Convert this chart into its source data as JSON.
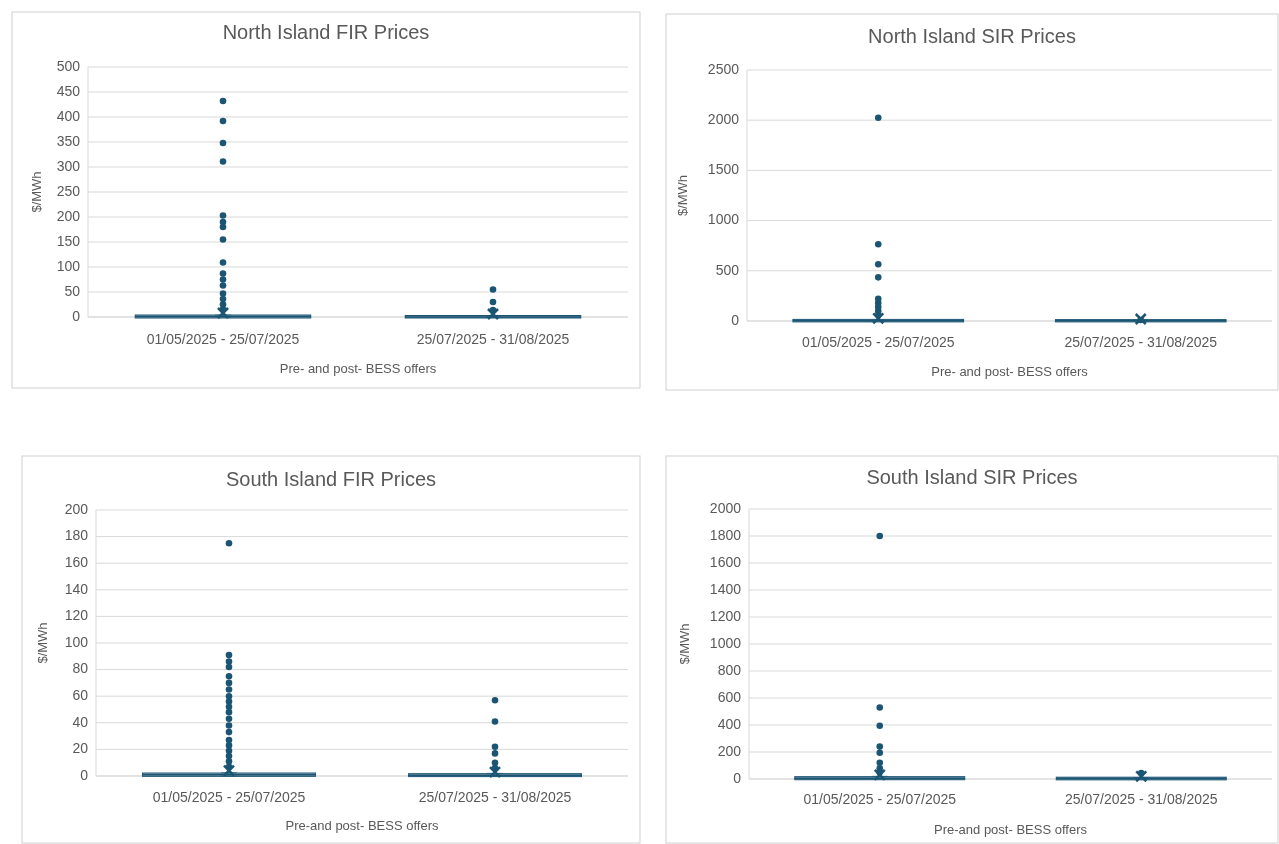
{
  "chart_data": [
    {
      "type": "box",
      "title": "North Island FIR Prices",
      "xlabel": "Pre- and post- BESS offers",
      "ylabel": "$/MWh",
      "categories": [
        "01/05/2025 - 25/07/2025",
        "25/07/2025 - 31/08/2025"
      ],
      "color": "#1b5574",
      "ylim": [
        0,
        500
      ],
      "yticks": [
        0,
        50,
        100,
        150,
        200,
        250,
        300,
        350,
        400,
        450,
        500
      ],
      "grid": "y",
      "marker": "circle",
      "boxes": [
        {
          "low": 0,
          "q1": 0,
          "median": 1,
          "q3": 2,
          "high": 4,
          "mean": 8,
          "outliers": [
            432,
            392,
            348,
            311,
            203,
            190,
            180,
            155,
            109,
            87,
            75,
            63,
            47,
            36,
            25,
            15
          ]
        },
        {
          "low": 0,
          "q1": 0,
          "median": 0,
          "q3": 1,
          "high": 2,
          "mean": 6,
          "outliers": [
            55,
            30,
            14
          ]
        }
      ]
    },
    {
      "type": "box",
      "title": "North Island SIR Prices",
      "xlabel": "Pre- and post- BESS offers",
      "ylabel": "$/MWh",
      "categories": [
        "01/05/2025 - 25/07/2025",
        "25/07/2025 - 31/08/2025"
      ],
      "color": "#1b5574",
      "ylim": [
        0,
        2500
      ],
      "yticks": [
        0,
        500,
        1000,
        1500,
        2000,
        2500
      ],
      "grid": "y",
      "marker": "circle",
      "boxes": [
        {
          "low": 0,
          "q1": 1,
          "median": 3,
          "q3": 6,
          "high": 10,
          "mean": 25,
          "outliers": [
            2025,
            765,
            565,
            435,
            220,
            180,
            140,
            100,
            60
          ]
        },
        {
          "low": 0,
          "q1": 1,
          "median": 2,
          "q3": 4,
          "high": 6,
          "mean": 20,
          "outliers": [
            10
          ]
        }
      ]
    },
    {
      "type": "box",
      "title": "South Island FIR Prices",
      "xlabel": "Pre-and post- BESS offers",
      "ylabel": "$/MWh",
      "categories": [
        "01/05/2025 - 25/07/2025",
        "25/07/2025 - 31/08/2025"
      ],
      "color": "#1b5574",
      "ylim": [
        0,
        200
      ],
      "yticks": [
        0,
        20,
        40,
        60,
        80,
        100,
        120,
        140,
        160,
        180,
        200
      ],
      "grid": "y",
      "marker": "circle",
      "boxes": [
        {
          "low": 0,
          "q1": 0.5,
          "median": 1,
          "q3": 1.5,
          "high": 2.5,
          "mean": 4,
          "outliers": [
            175,
            91,
            86,
            82,
            75,
            70,
            65,
            60,
            56,
            52,
            48,
            43,
            38,
            33,
            27,
            23,
            19,
            15,
            11,
            7
          ]
        },
        {
          "low": 0,
          "q1": 0.3,
          "median": 0.5,
          "q3": 1,
          "high": 2,
          "mean": 3,
          "outliers": [
            57,
            41,
            22,
            17,
            10,
            6
          ]
        }
      ]
    },
    {
      "type": "box",
      "title": "South Island SIR Prices",
      "xlabel": "Pre-and post- BESS offers",
      "ylabel": "$/MWh",
      "categories": [
        "01/05/2025 - 25/07/2025",
        "25/07/2025 - 31/08/2025"
      ],
      "color": "#1b5574",
      "ylim": [
        0,
        2000
      ],
      "yticks": [
        0,
        200,
        400,
        600,
        800,
        1000,
        1200,
        1400,
        1600,
        1800,
        2000
      ],
      "grid": "y",
      "marker": "circle",
      "boxes": [
        {
          "low": 0,
          "q1": 2,
          "median": 5,
          "q3": 10,
          "high": 20,
          "mean": 30,
          "outliers": [
            1800,
            530,
            395,
            240,
            195,
            120,
            80,
            50
          ]
        },
        {
          "low": 0,
          "q1": 1,
          "median": 3,
          "q3": 6,
          "high": 10,
          "mean": 20,
          "outliers": [
            45
          ]
        }
      ]
    }
  ]
}
